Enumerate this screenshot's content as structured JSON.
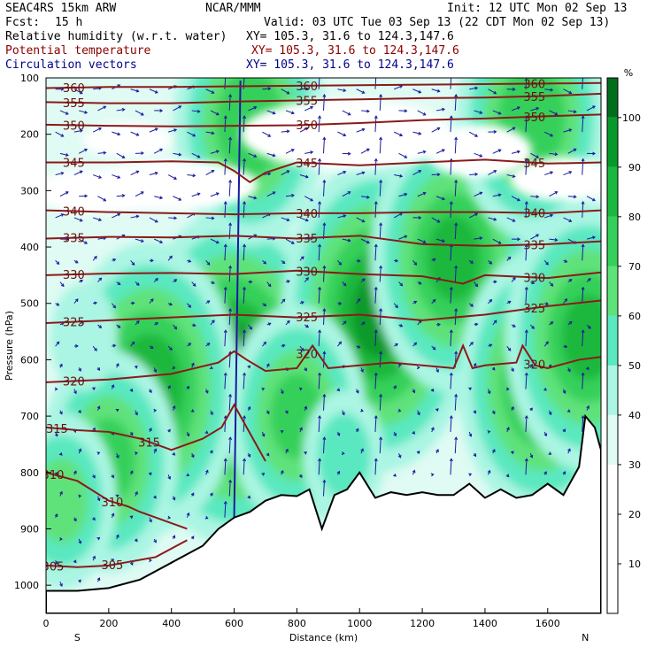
{
  "header": {
    "model": "SEAC4RS 15km ARW",
    "org": "NCAR/MMM",
    "init": "Init: 12 UTC Mon 02 Sep 13",
    "fcst_label": "Fcst:",
    "fcst_value": "15 h",
    "valid": "Valid: 03 UTC Tue 03 Sep 13 (22 CDT Mon 02 Sep 13)",
    "lines": [
      {
        "field": "Relative humidity (w.r.t. water)",
        "xy": "XY= 105.3, 31.6 to 124.3,147.6",
        "color": "#000000"
      },
      {
        "field": "Potential temperature",
        "xy": "XY= 105.3, 31.6 to 124.3,147.6",
        "color": "#8b0000"
      },
      {
        "field": "Circulation vectors",
        "xy": "XY= 105.3, 31.6 to 124.3,147.6",
        "color": "#00008b"
      }
    ]
  },
  "colorbar": {
    "unit": "%",
    "labels": [
      "10",
      "20",
      "30",
      "40",
      "50",
      "60",
      "70",
      "80",
      "90",
      "100"
    ],
    "bins": [
      {
        "from": 0,
        "to": 30,
        "color": "#ffffff"
      },
      {
        "from": 30,
        "to": 40,
        "color": "#dffbf3"
      },
      {
        "from": 40,
        "to": 50,
        "color": "#aaf5e3"
      },
      {
        "from": 50,
        "to": 60,
        "color": "#5ae8c0"
      },
      {
        "from": 60,
        "to": 70,
        "color": "#5ee27a"
      },
      {
        "from": 70,
        "to": 80,
        "color": "#35d05a"
      },
      {
        "from": 80,
        "to": 90,
        "color": "#1ab83e"
      },
      {
        "from": 90,
        "to": 100,
        "color": "#079a2a"
      },
      {
        "from": 100,
        "to": 108,
        "color": "#006e1c"
      }
    ]
  },
  "chart_data": {
    "type": "heatmap",
    "xlabel": "Distance (km)",
    "ylabel": "Pressure (hPa)",
    "xlim": [
      0,
      1770
    ],
    "ylim": [
      1050,
      100
    ],
    "x_ticks": [
      "0",
      "200",
      "400",
      "600",
      "800",
      "1000",
      "1200",
      "1400",
      "1600"
    ],
    "y_ticks": [
      "100",
      "200",
      "300",
      "400",
      "500",
      "600",
      "700",
      "800",
      "900",
      "1000"
    ],
    "left_end_label": "S",
    "right_end_label": "N",
    "terrain_surface_hPa": {
      "x": [
        0,
        100,
        200,
        300,
        400,
        500,
        550,
        600,
        650,
        700,
        750,
        800,
        840,
        880,
        920,
        960,
        1000,
        1050,
        1100,
        1150,
        1200,
        1250,
        1300,
        1350,
        1400,
        1450,
        1500,
        1550,
        1600,
        1650,
        1700,
        1720,
        1750,
        1770
      ],
      "y": [
        1010,
        1010,
        1005,
        990,
        960,
        930,
        900,
        880,
        870,
        850,
        840,
        842,
        830,
        900,
        840,
        830,
        800,
        845,
        835,
        840,
        835,
        840,
        840,
        820,
        845,
        830,
        845,
        840,
        820,
        840,
        790,
        700,
        720,
        760
      ]
    },
    "potential_temperature_contours": [
      {
        "label": "305",
        "x": [
          0,
          100,
          200,
          250,
          300,
          350,
          400,
          450
        ],
        "p": [
          965,
          968,
          965,
          960,
          955,
          950,
          935,
          920
        ]
      },
      {
        "label": "310",
        "x": [
          0,
          100,
          200,
          260,
          300,
          350,
          400,
          450
        ],
        "p": [
          800,
          815,
          850,
          860,
          870,
          880,
          890,
          900
        ]
      },
      {
        "label": "315",
        "x": [
          0,
          100,
          200,
          300,
          400,
          500,
          560,
          600,
          640,
          700
        ],
        "p": [
          720,
          725,
          728,
          740,
          760,
          740,
          720,
          680,
          720,
          780
        ]
      },
      {
        "label": "320",
        "x": [
          0,
          200,
          400,
          550,
          600,
          640,
          700,
          800,
          850,
          900,
          1000,
          1100,
          1200,
          1300,
          1330,
          1360,
          1400,
          1500,
          1520,
          1560,
          1600,
          1700,
          1770
        ],
        "p": [
          640,
          635,
          625,
          605,
          585,
          600,
          620,
          615,
          575,
          615,
          610,
          605,
          610,
          615,
          575,
          615,
          610,
          605,
          575,
          610,
          615,
          600,
          595
        ]
      },
      {
        "label": "325",
        "x": [
          0,
          200,
          400,
          600,
          800,
          1000,
          1200,
          1400,
          1600,
          1770
        ],
        "p": [
          535,
          530,
          525,
          520,
          525,
          520,
          530,
          520,
          505,
          495
        ]
      },
      {
        "label": "330",
        "x": [
          0,
          200,
          400,
          600,
          800,
          1000,
          1200,
          1330,
          1400,
          1600,
          1770
        ],
        "p": [
          450,
          447,
          446,
          448,
          442,
          448,
          452,
          465,
          450,
          455,
          445
        ]
      },
      {
        "label": "335",
        "x": [
          0,
          200,
          400,
          600,
          800,
          1000,
          1200,
          1400,
          1600,
          1770
        ],
        "p": [
          385,
          382,
          383,
          380,
          385,
          380,
          395,
          398,
          395,
          390
        ]
      },
      {
        "label": "340",
        "x": [
          0,
          200,
          400,
          600,
          800,
          1000,
          1200,
          1400,
          1600,
          1770
        ],
        "p": [
          335,
          338,
          340,
          342,
          340,
          340,
          338,
          338,
          340,
          335
        ]
      },
      {
        "label": "345",
        "x": [
          0,
          200,
          400,
          550,
          600,
          650,
          700,
          800,
          1000,
          1200,
          1400,
          1600,
          1770
        ],
        "p": [
          250,
          250,
          248,
          250,
          265,
          285,
          268,
          250,
          255,
          250,
          245,
          252,
          250
        ]
      },
      {
        "label": "350",
        "x": [
          0,
          200,
          400,
          600,
          800,
          1000,
          1200,
          1400,
          1600,
          1770
        ],
        "p": [
          183,
          185,
          186,
          185,
          184,
          180,
          175,
          172,
          168,
          165
        ]
      },
      {
        "label": "355",
        "x": [
          0,
          200,
          400,
          600,
          800,
          1000,
          1200,
          1400,
          1600,
          1770
        ],
        "p": [
          143,
          145,
          145,
          142,
          140,
          138,
          136,
          135,
          132,
          128
        ]
      },
      {
        "label": "360",
        "x": [
          0,
          200,
          400,
          600,
          800,
          1000,
          1200,
          1400,
          1600,
          1770
        ],
        "p": [
          118,
          116,
          116,
          115,
          114,
          113,
          112,
          111,
          110,
          109
        ]
      }
    ],
    "humidity_features_percent": [
      {
        "x": 600,
        "p": 630,
        "value": 95
      },
      {
        "x": 1060,
        "p": 520,
        "value": 90
      },
      {
        "x": 1300,
        "p": 420,
        "value": 80
      },
      {
        "x": 330,
        "p": 650,
        "value": 85
      },
      {
        "x": 200,
        "p": 780,
        "value": 70
      },
      {
        "x": 800,
        "p": 700,
        "value": 70
      },
      {
        "x": 1580,
        "p": 640,
        "value": 80
      },
      {
        "x": 1730,
        "p": 560,
        "value": 80
      },
      {
        "x": 50,
        "p": 850,
        "value": 60
      },
      {
        "x": 650,
        "p": 180,
        "value": 75
      },
      {
        "x": 1550,
        "p": 170,
        "value": 75
      },
      {
        "x": 950,
        "p": 770,
        "value": 50
      },
      {
        "x": 120,
        "p": 560,
        "value": 45
      }
    ]
  }
}
